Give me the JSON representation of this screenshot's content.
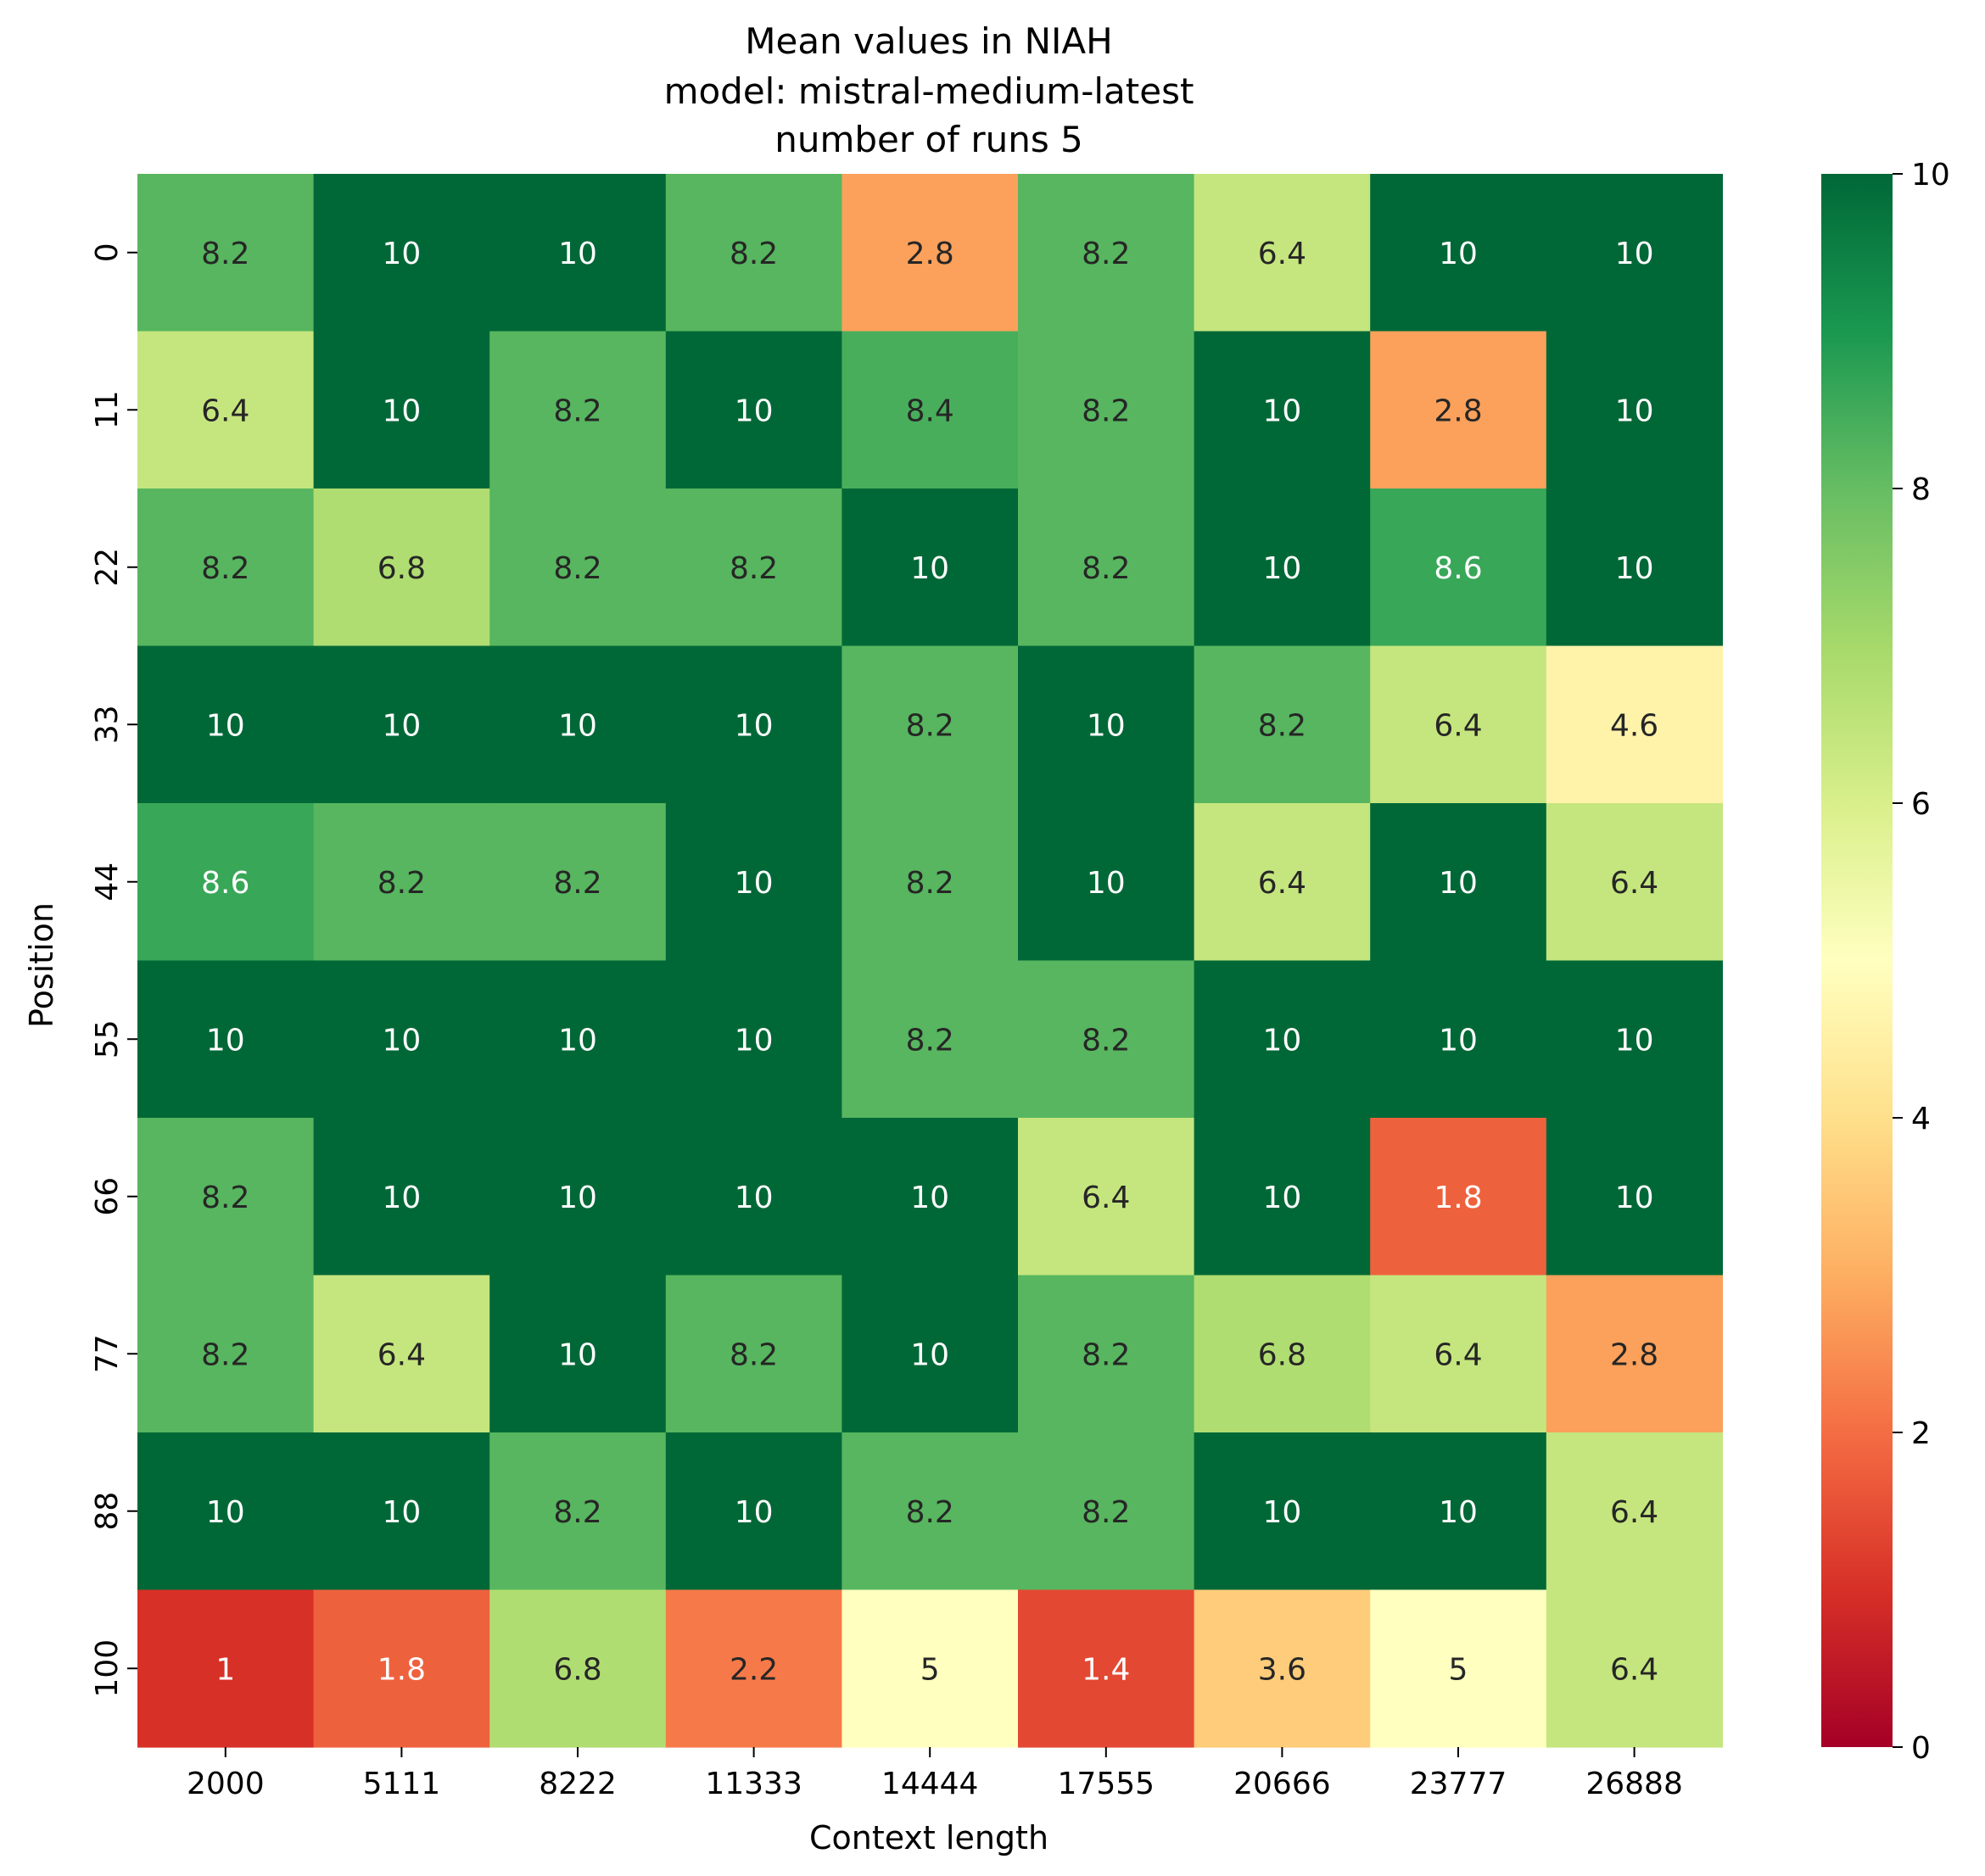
{
  "chart_data": {
    "type": "heatmap",
    "title": [
      "Mean values in NIAH",
      "model: mistral-medium-latest",
      "number of runs 5"
    ],
    "xlabel": "Context length",
    "ylabel": "Position",
    "x_categories": [
      "2000",
      "5111",
      "8222",
      "11333",
      "14444",
      "17555",
      "20666",
      "23777",
      "26888"
    ],
    "y_categories": [
      "0",
      "11",
      "22",
      "33",
      "44",
      "55",
      "66",
      "77",
      "88",
      "100"
    ],
    "values": [
      [
        8.2,
        10,
        10,
        8.2,
        2.8,
        8.2,
        6.4,
        10,
        10
      ],
      [
        6.4,
        10,
        8.2,
        10,
        8.4,
        8.2,
        10,
        2.8,
        10
      ],
      [
        8.2,
        6.8,
        8.2,
        8.2,
        10,
        8.2,
        10,
        8.6,
        10
      ],
      [
        10,
        10,
        10,
        10,
        8.2,
        10,
        8.2,
        6.4,
        4.6
      ],
      [
        8.6,
        8.2,
        8.2,
        10,
        8.2,
        10,
        6.4,
        10,
        6.4
      ],
      [
        10,
        10,
        10,
        10,
        8.2,
        8.2,
        10,
        10,
        10
      ],
      [
        8.2,
        10,
        10,
        10,
        10,
        6.4,
        10,
        1.8,
        10
      ],
      [
        8.2,
        6.4,
        10,
        8.2,
        10,
        8.2,
        6.8,
        6.4,
        2.8
      ],
      [
        10,
        10,
        8.2,
        10,
        8.2,
        8.2,
        10,
        10,
        6.4
      ],
      [
        1,
        1.8,
        6.8,
        2.2,
        5,
        1.4,
        3.6,
        5,
        6.4
      ]
    ],
    "colormap": "RdYlGn",
    "vmin": 0,
    "vmax": 10,
    "colorbar_ticks": [
      "0",
      "2",
      "4",
      "6",
      "8",
      "10"
    ]
  }
}
